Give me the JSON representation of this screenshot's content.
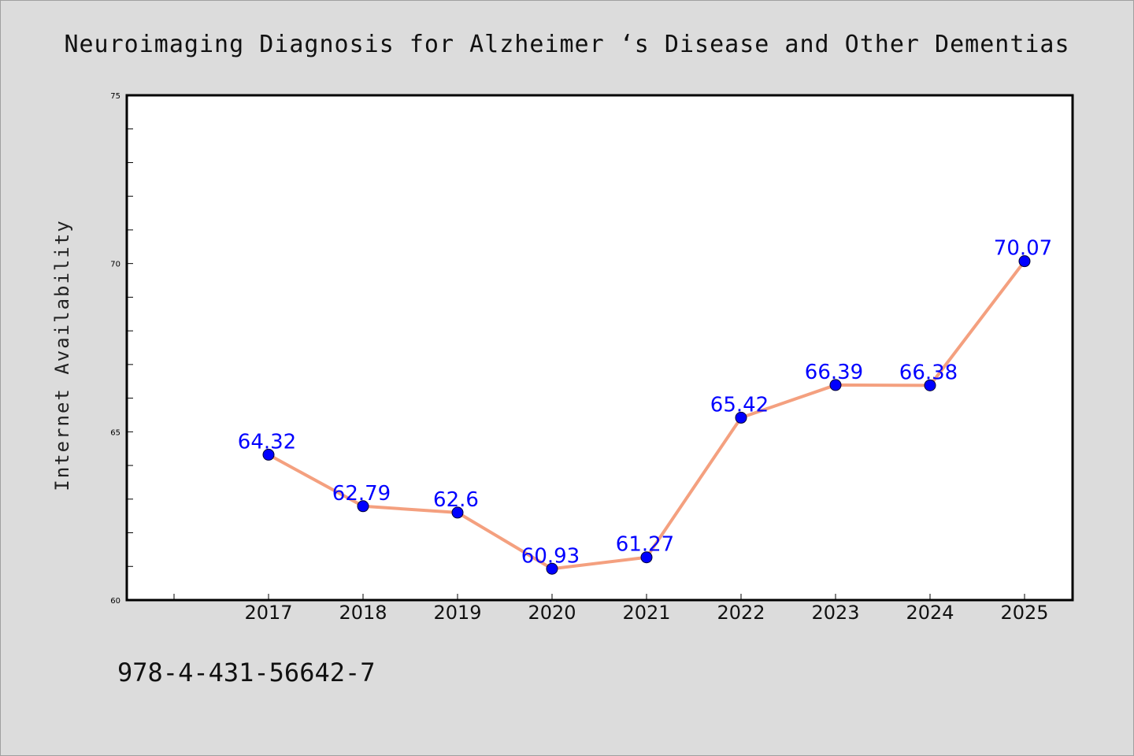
{
  "chart_data": {
    "type": "line",
    "title": "Neuroimaging Diagnosis for Alzheimer ‘s Disease and Other Dementias",
    "xlabel": "",
    "ylabel": "Internet Availability",
    "categories": [
      "2017",
      "2018",
      "2019",
      "2020",
      "2021",
      "2022",
      "2023",
      "2024",
      "2025"
    ],
    "series": [
      {
        "values": [
          64.32,
          62.79,
          62.6,
          60.93,
          61.27,
          65.42,
          66.39,
          66.38,
          70.07
        ]
      }
    ],
    "data_labels": [
      "64.32",
      "62.79",
      "62.6",
      "60.93",
      "61.27",
      "65.42",
      "66.39",
      "66.38",
      "70.07"
    ],
    "ylim": [
      60,
      75
    ],
    "yticks": [
      60,
      65,
      70,
      75
    ],
    "grid": false,
    "line_color": "#f4a07f",
    "marker_color": "#0000ff",
    "label_color": "#0000ff",
    "background_color": "#dcdcdc",
    "plot_background_color": "#ffffff"
  },
  "annotation": "978-4-431-56642-7"
}
